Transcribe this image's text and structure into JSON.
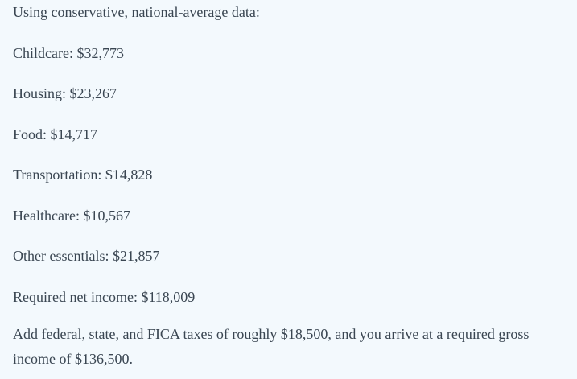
{
  "intro": "Using conservative, national-average data:",
  "items": [
    "Childcare: $32,773",
    "Housing: $23,267",
    "Food: $14,717",
    "Transportation: $14,828",
    "Healthcare: $10,567",
    "Other essentials: $21,857",
    "Required net income: $118,009"
  ],
  "conclusion": "Add federal, state, and FICA taxes of roughly $18,500, and you arrive at a required gross income of $136,500."
}
